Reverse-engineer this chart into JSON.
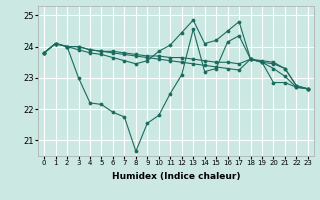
{
  "background_color": "#cce8e2",
  "grid_color": "#ffffff",
  "line_color": "#1a6b5e",
  "xlim": [
    -0.5,
    23.5
  ],
  "ylim": [
    20.5,
    25.3
  ],
  "yticks": [
    21,
    22,
    23,
    24,
    25
  ],
  "xlabel": "Humidex (Indice chaleur)",
  "series": [
    [
      23.8,
      24.1,
      24.0,
      24.0,
      23.9,
      23.85,
      23.85,
      23.8,
      23.75,
      23.7,
      23.7,
      23.65,
      23.65,
      23.6,
      23.55,
      23.5,
      23.5,
      23.45,
      23.6,
      23.55,
      23.5,
      23.3,
      22.75,
      22.65
    ],
    [
      23.8,
      24.1,
      24.0,
      24.0,
      23.9,
      23.85,
      23.8,
      23.75,
      23.7,
      23.65,
      23.6,
      23.55,
      23.5,
      23.45,
      23.4,
      23.35,
      23.3,
      23.25,
      23.6,
      23.5,
      23.45,
      23.3,
      22.75,
      22.65
    ],
    [
      23.8,
      24.1,
      24.0,
      23.0,
      22.2,
      22.15,
      21.9,
      21.75,
      20.65,
      21.55,
      21.8,
      22.5,
      23.1,
      24.55,
      23.2,
      23.3,
      24.15,
      24.35,
      23.6,
      23.5,
      22.85,
      22.85,
      22.7,
      22.65
    ],
    [
      23.8,
      24.1,
      24.0,
      23.9,
      23.8,
      23.75,
      23.65,
      23.55,
      23.45,
      23.55,
      23.85,
      24.05,
      24.45,
      24.85,
      24.1,
      24.2,
      24.5,
      24.8,
      23.6,
      23.5,
      23.3,
      23.05,
      22.7,
      22.65
    ]
  ]
}
